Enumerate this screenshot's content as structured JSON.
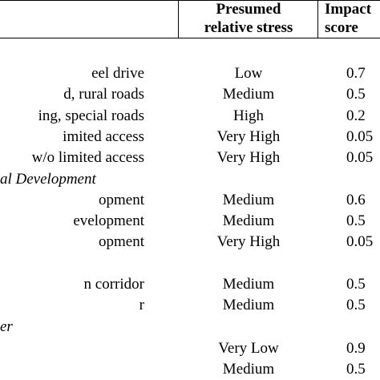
{
  "header": {
    "stress": [
      "Presumed",
      "relative stress"
    ],
    "score": [
      "Impact",
      "score"
    ]
  },
  "rows": [
    {
      "label": "eel drive",
      "stress": "Low",
      "score": "0.7"
    },
    {
      "label": "d, rural roads",
      "stress": "Medium",
      "score": "0.5"
    },
    {
      "label": "ing, special roads",
      "stress": "High",
      "score": "0.2"
    },
    {
      "label": "imited access",
      "stress": "Very High",
      "score": "0.05"
    },
    {
      "label": "w/o limited access",
      "stress": "Very High",
      "score": "0.05"
    },
    {
      "section": "al Development"
    },
    {
      "label": "opment",
      "stress": "Medium",
      "score": "0.6"
    },
    {
      "label": "evelopment",
      "stress": "Medium",
      "score": "0.5"
    },
    {
      "label": "opment",
      "stress": "Very High",
      "score": "0.05"
    },
    {
      "label": "n corridor",
      "stress": "Medium",
      "score": "0.5"
    },
    {
      "label": "r",
      "stress": "Medium",
      "score": "0.5"
    },
    {
      "section": "er"
    },
    {
      "stress": "Very Low",
      "score": "0.9"
    },
    {
      "stress": "Medium",
      "score": "0.5"
    }
  ]
}
